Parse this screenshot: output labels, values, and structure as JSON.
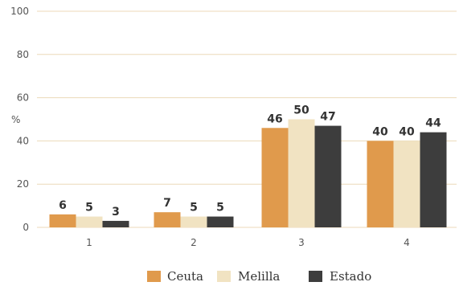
{
  "chart_data": {
    "type": "bar",
    "categories": [
      "1",
      "2",
      "3",
      "4"
    ],
    "series": [
      {
        "name": "Ceuta",
        "values": [
          6,
          7,
          46,
          40
        ],
        "color": "#e09a4c"
      },
      {
        "name": "Melilla",
        "values": [
          5,
          5,
          50,
          40
        ],
        "color": "#f1e3c2"
      },
      {
        "name": "Estado",
        "values": [
          3,
          5,
          47,
          44
        ],
        "color": "#3d3d3d"
      }
    ],
    "ylabel": "%",
    "ylim": [
      0,
      100
    ],
    "yticks": [
      "0",
      "20",
      "40",
      "60",
      "80",
      "100"
    ],
    "grid": true,
    "gridline_color": "#ecd9b8",
    "legend_position": "bottom"
  }
}
